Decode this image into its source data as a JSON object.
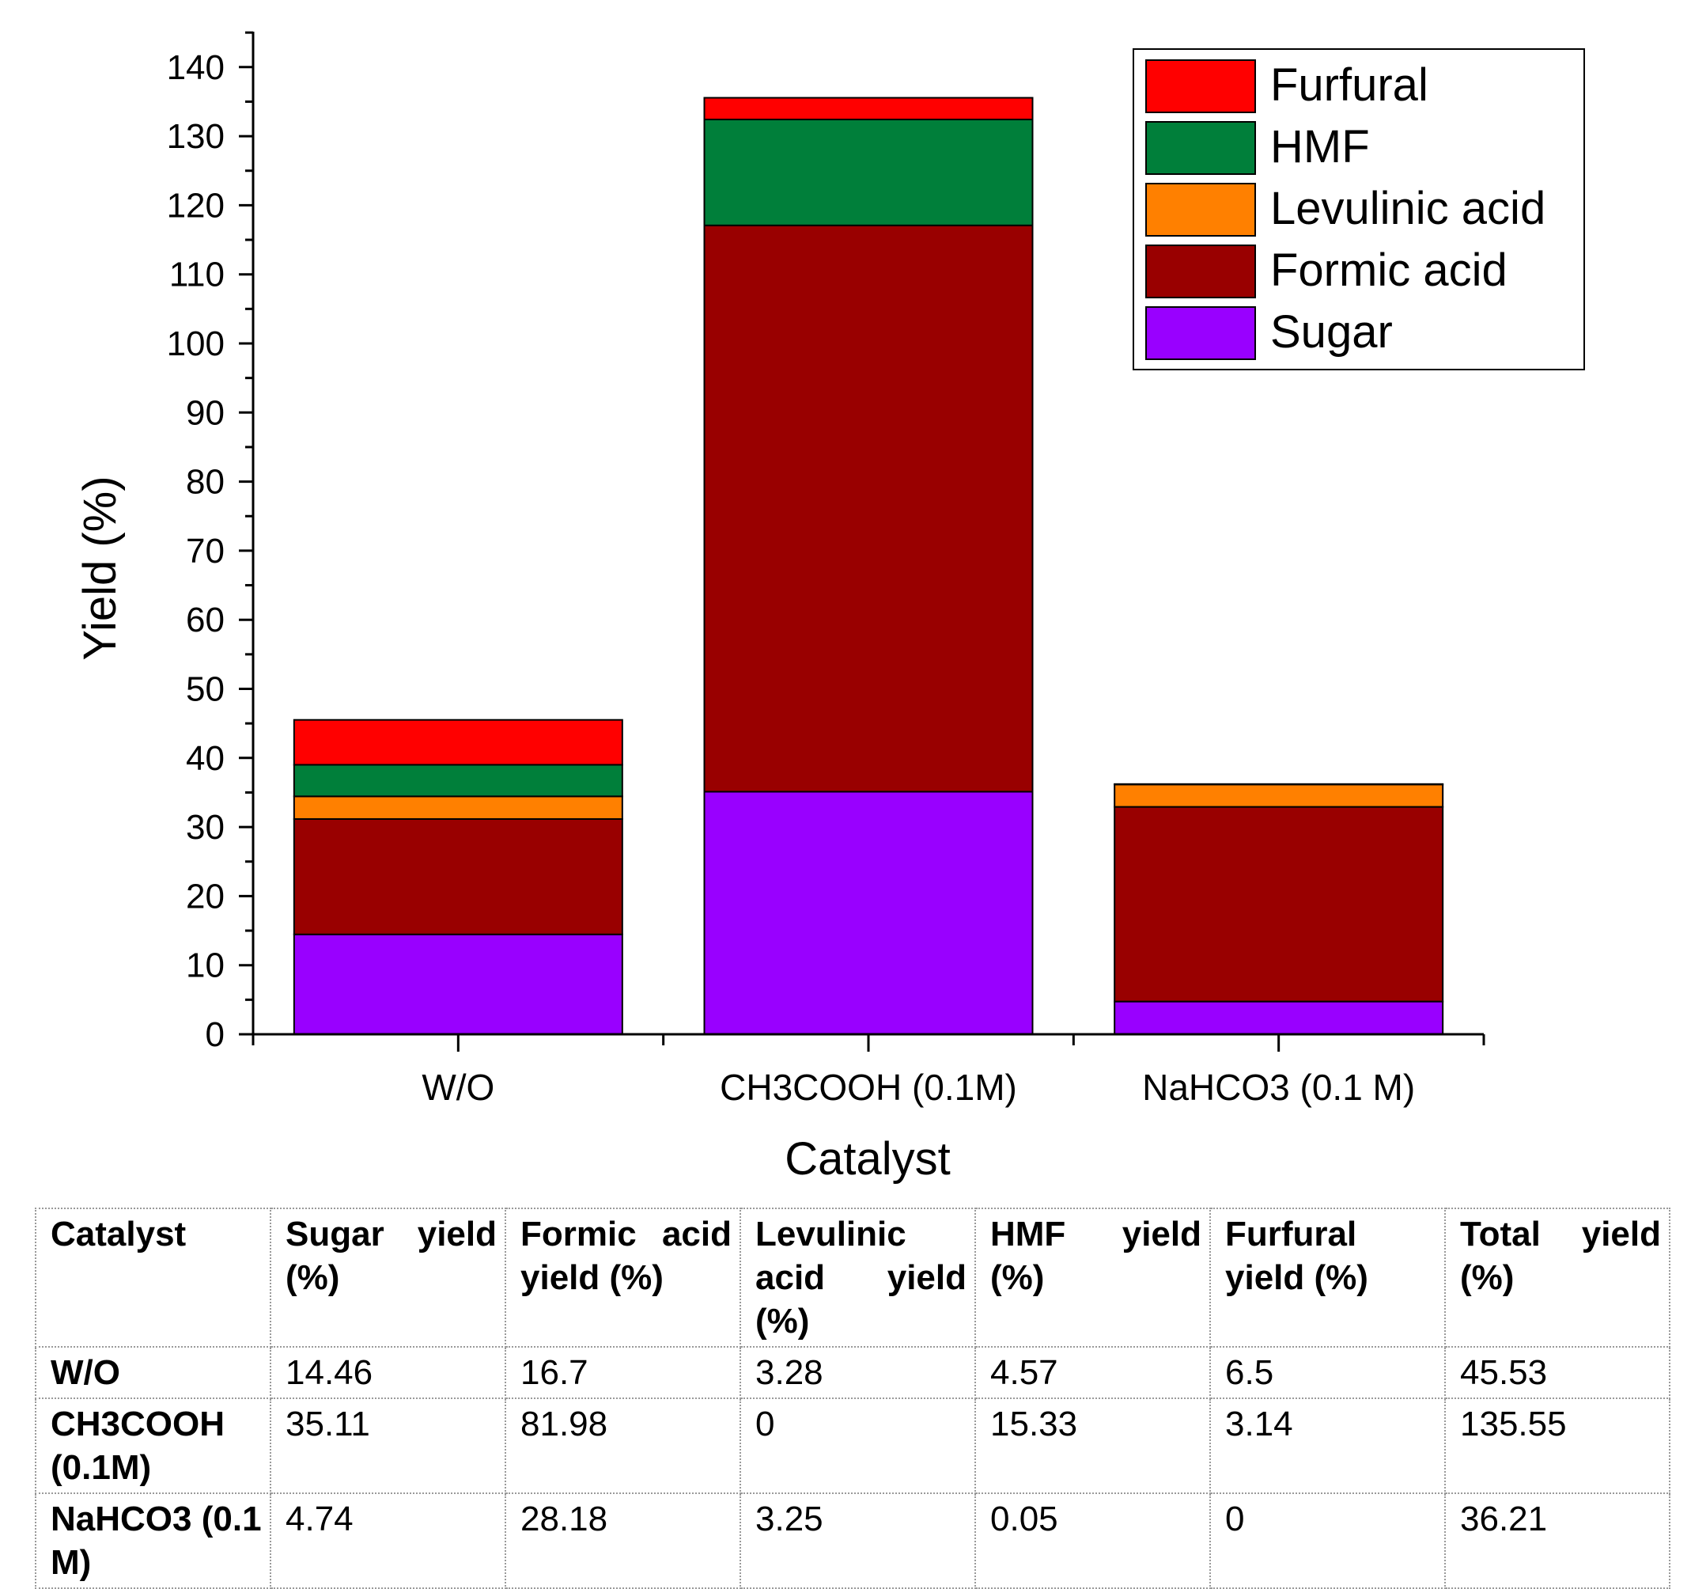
{
  "chart_data": {
    "type": "stacked-bar",
    "title": "",
    "xlabel": "Catalyst",
    "ylabel": "Yield (%)",
    "ylim": [
      0,
      145
    ],
    "yticks": [
      0,
      10,
      20,
      30,
      40,
      50,
      60,
      70,
      80,
      90,
      100,
      110,
      120,
      130,
      140
    ],
    "categories": [
      "W/O",
      "CH3COOH (0.1M)",
      "NaHCO3 (0.1 M)"
    ],
    "series": [
      {
        "name": "Sugar",
        "color": "#9900FF",
        "values": [
          14.46,
          35.11,
          4.74
        ]
      },
      {
        "name": "Formic acid",
        "color": "#990000",
        "values": [
          16.7,
          81.98,
          28.18
        ]
      },
      {
        "name": "Levulinic acid",
        "color": "#FF8000",
        "values": [
          3.28,
          0,
          3.25
        ]
      },
      {
        "name": "HMF",
        "color": "#007F3A",
        "values": [
          4.57,
          15.33,
          0.05
        ]
      },
      {
        "name": "Furfural",
        "color": "#FF0000",
        "values": [
          6.5,
          3.14,
          0
        ]
      }
    ],
    "legend": {
      "position": "top-right",
      "entries": [
        "Furfural",
        "HMF",
        "Levulinic acid",
        "Formic acid",
        "Sugar"
      ]
    }
  },
  "table": {
    "headers": [
      "Catalyst",
      "Sugar yield (%)",
      "Formic acid yield (%)",
      "Levulinic acid yield (%)",
      "HMF yield (%)",
      "Furfural yield (%)",
      "Total yield (%)"
    ],
    "rows": [
      [
        "W/O",
        "14.46",
        "16.7",
        "3.28",
        "4.57",
        "6.5",
        "45.53"
      ],
      [
        "CH3COOH (0.1M)",
        "35.11",
        "81.98",
        "0",
        "15.33",
        "3.14",
        "135.55"
      ],
      [
        "NaHCO3 (0.1 M)",
        "4.74",
        "28.18",
        "3.25",
        "0.05",
        "0",
        "36.21"
      ]
    ]
  }
}
